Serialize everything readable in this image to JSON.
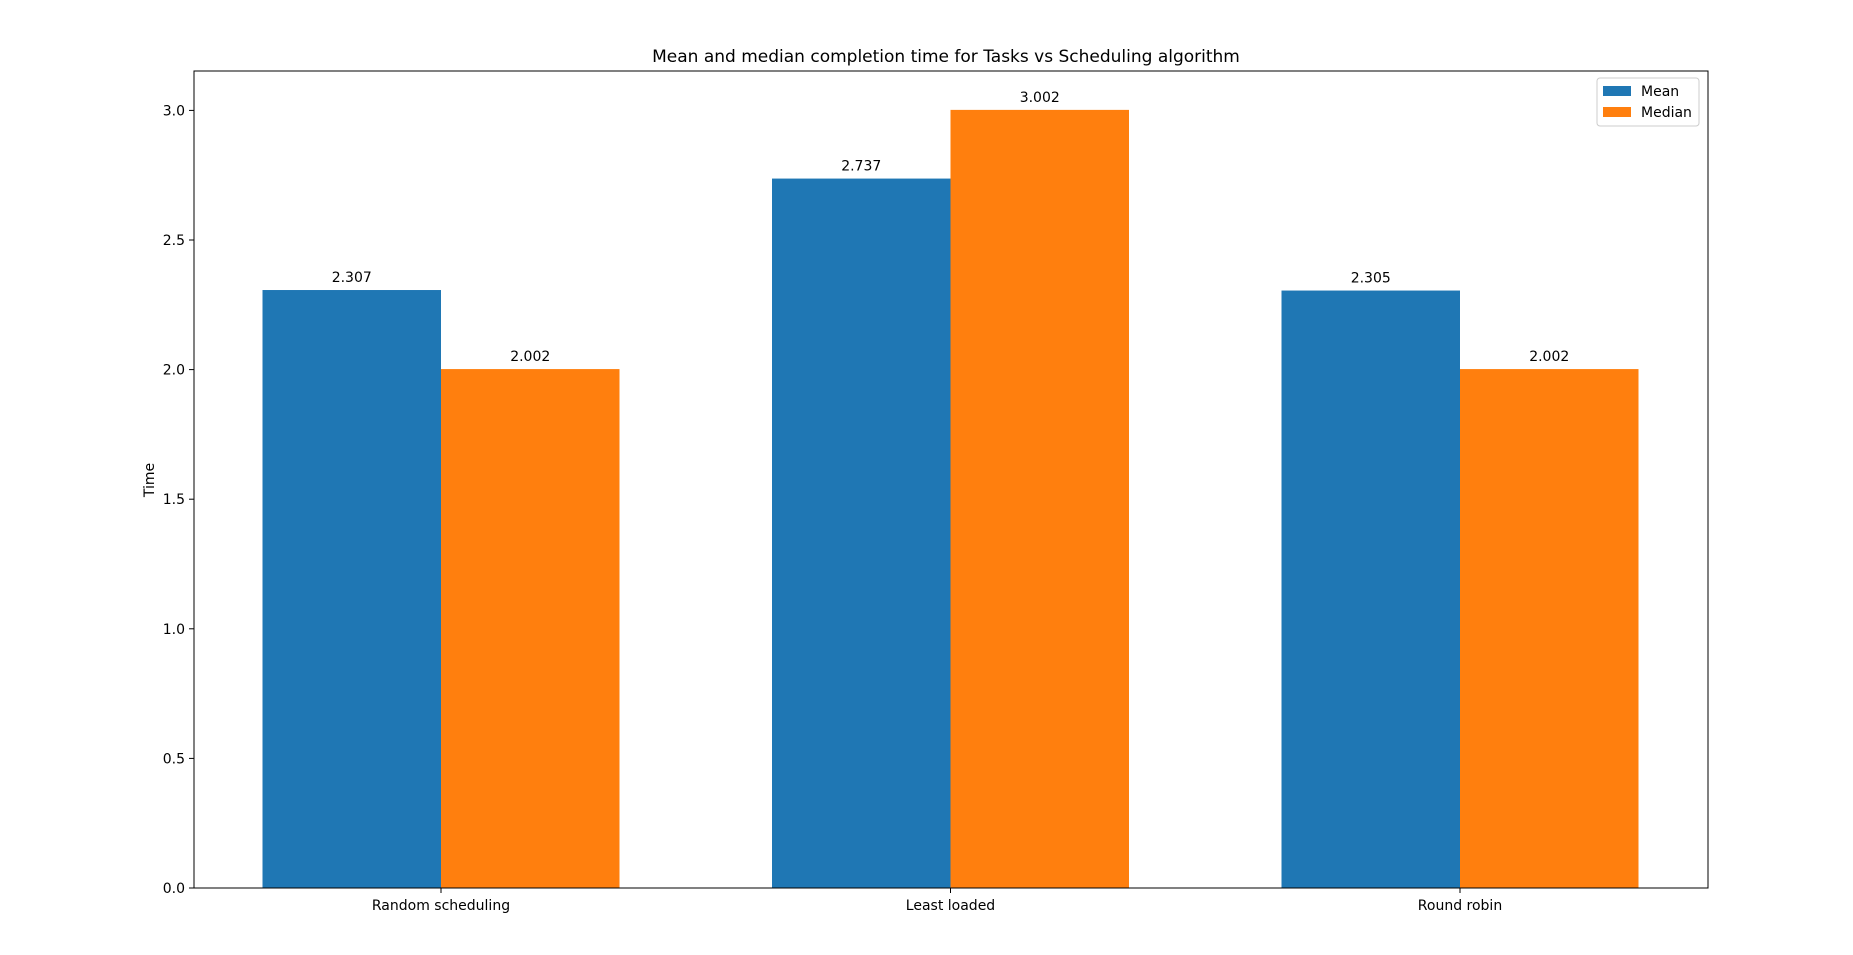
{
  "chart_data": {
    "type": "bar",
    "title": "Mean and median completion time for Tasks vs Scheduling algorithm",
    "xlabel": "",
    "ylabel": "Time",
    "categories": [
      "Random scheduling",
      "Least loaded",
      "Round robin"
    ],
    "series": [
      {
        "name": "Mean",
        "values": [
          2.307,
          2.737,
          2.305
        ],
        "labels": [
          "2.307",
          "2.737",
          "2.305"
        ],
        "color": "#1f77b4"
      },
      {
        "name": "Median",
        "values": [
          2.002,
          3.002,
          2.002
        ],
        "labels": [
          "2.002",
          "3.002",
          "2.002"
        ],
        "color": "#ff7f0e"
      }
    ],
    "ylim": [
      0,
      3.152
    ],
    "yticks": [
      0.0,
      0.5,
      1.0,
      1.5,
      2.0,
      2.5,
      3.0
    ],
    "ytick_labels": [
      "0.0",
      "0.5",
      "1.0",
      "1.5",
      "2.0",
      "2.5",
      "3.0"
    ],
    "grid": false,
    "legend_position": "top-right"
  }
}
